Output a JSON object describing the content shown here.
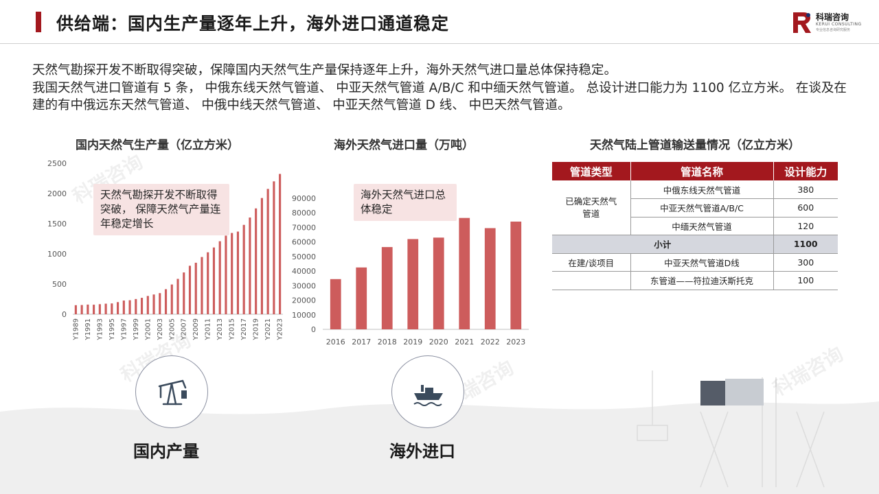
{
  "header": {
    "title": "供给端：国内生产量逐年上升，海外进口通道稳定",
    "logo_name": "科瑞咨询",
    "logo_sub": "KERUI CONSULTING",
    "logo_tag": "专业信息咨询研究服务"
  },
  "intro": {
    "line1": "天然气勘探开发不断取得突破，保障国内天然气生产量保持逐年上升，海外天然气进口量总体保持稳定。",
    "line2": "我国天然气进口管道有 5 条， 中俄东线天然气管道、 中亚天然气管道 A/B/C 和中缅天然气管道。 总设计进口能力为 1100 亿立方米。 在谈及在建的有中俄远东天然气管道、 中俄中线天然气管道、 中亚天然气管道 D 线、 中巴天然气管道。"
  },
  "colors": {
    "accent": "#a3181e",
    "bar": "#cd5c5c",
    "subtotal_bg": "#d5d7de",
    "callout_bg": "#f7e3e3"
  },
  "callouts": {
    "domestic": "天然气勘探开发不断取得突破， 保障天然气产量连年稳定增长",
    "import": "海外天然气进口总体稳定"
  },
  "categories": {
    "domestic": {
      "label": "国内产量",
      "icon": "oil-pump-icon"
    },
    "import": {
      "label": "海外进口",
      "icon": "ship-icon"
    }
  },
  "table": {
    "title": "天然气陆上管道输送量情况（亿立方米）",
    "headers": [
      "管道类型",
      "管道名称",
      "设计能力"
    ],
    "group1_type": "已确定天然气管道",
    "rows_confirmed": [
      {
        "name": "中俄东线天然气管道",
        "capacity": "380"
      },
      {
        "name": "中亚天然气管道A/B/C",
        "capacity": "600"
      },
      {
        "name": "中缅天然气管道",
        "capacity": "120"
      }
    ],
    "subtotal_label": "小计",
    "subtotal_value": "1100",
    "group2_type": "在建/谈项目",
    "rows_planned": [
      {
        "name": "中亚天然气管道D线",
        "capacity": "300"
      },
      {
        "name": "东管道——符拉迪沃斯托克",
        "capacity": "100"
      }
    ]
  },
  "chart_data": [
    {
      "type": "bar",
      "title": "国内天然气生产量（亿立方米）",
      "categories": [
        "Y1989",
        "Y1990",
        "Y1991",
        "Y1992",
        "Y1993",
        "Y1994",
        "Y1995",
        "Y1996",
        "Y1997",
        "Y1998",
        "Y1999",
        "Y2000",
        "Y2001",
        "Y2002",
        "Y2003",
        "Y2004",
        "Y2005",
        "Y2006",
        "Y2007",
        "Y2008",
        "Y2009",
        "Y2010",
        "Y2011",
        "Y2012",
        "Y2013",
        "Y2014",
        "Y2015",
        "Y2016",
        "Y2017",
        "Y2018",
        "Y2019",
        "Y2020",
        "Y2021",
        "Y2022",
        "Y2023"
      ],
      "tick_labels": [
        "Y1989",
        "Y1991",
        "Y1993",
        "Y1995",
        "Y1997",
        "Y1999",
        "Y2001",
        "Y2003",
        "Y2005",
        "Y2007",
        "Y2009",
        "Y2011",
        "Y2013",
        "Y2015",
        "Y2017",
        "Y2019",
        "Y2021",
        "Y2023"
      ],
      "values": [
        150,
        153,
        160,
        158,
        167,
        175,
        179,
        201,
        227,
        232,
        252,
        272,
        303,
        327,
        350,
        415,
        493,
        586,
        692,
        803,
        853,
        948,
        1026,
        1106,
        1209,
        1302,
        1346,
        1369,
        1480,
        1602,
        1753,
        1925,
        2076,
        2201,
        2324
      ],
      "ylim": [
        0,
        2500
      ],
      "yticks": [
        0,
        500,
        1000,
        1500,
        2000,
        2500
      ]
    },
    {
      "type": "bar",
      "title": "海外天然气进口量（万吨）",
      "categories": [
        "2016",
        "2017",
        "2018",
        "2019",
        "2020",
        "2021",
        "2022",
        "2023"
      ],
      "values": [
        34500,
        42500,
        56500,
        62000,
        63000,
        76500,
        69500,
        74000
      ],
      "ylim": [
        0,
        90000
      ],
      "yticks": [
        0,
        10000,
        20000,
        30000,
        40000,
        50000,
        60000,
        70000,
        80000,
        90000
      ]
    }
  ]
}
